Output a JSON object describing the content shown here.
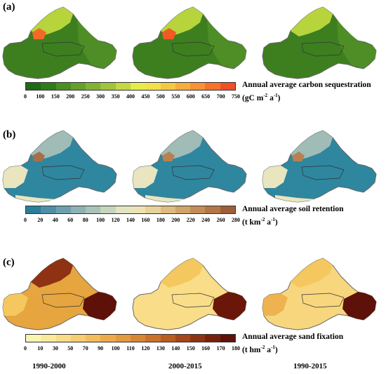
{
  "panels": [
    {
      "label": "(a)",
      "title": "Annual average carbon sequestration",
      "unit_prefix": "(gC m",
      "unit_exp1": "-2",
      "unit_mid": " a",
      "unit_exp2": "-1",
      "unit_suffix": ")",
      "ticks": [
        "0",
        "100",
        "150",
        "200",
        "250",
        "300",
        "350",
        "400",
        "450",
        "500",
        "550",
        "600",
        "650",
        "700",
        "750"
      ],
      "colors": [
        "#1e6b14",
        "#2f7d19",
        "#4a8f22",
        "#65a02b",
        "#82b233",
        "#a2c43a",
        "#c5d843",
        "#e6ec4a",
        "#f3e04a",
        "#f6c842",
        "#f7ad3a",
        "#f89232",
        "#f7722a",
        "#f24f22"
      ],
      "maps": [
        {
          "base": "#3d7f1f",
          "mid": "#4f8e26",
          "accent": "#b8d43d",
          "hot": "#f36a28",
          "hot2": "#d5e84a"
        },
        {
          "base": "#3d7f1f",
          "mid": "#4f8e26",
          "accent": "#b8d43d",
          "hot": "#f25a24",
          "hot2": "#d5e84a"
        },
        {
          "base": "#3d7f1f",
          "mid": "#4f8e26",
          "accent": "#b8d43d",
          "hot": "#bad33e",
          "hot2": "#d5e84a"
        }
      ]
    },
    {
      "label": "(b)",
      "title": "Annual average soil retention",
      "unit_prefix": "(t km",
      "unit_exp1": "-2",
      "unit_mid": " a",
      "unit_exp2": "-1",
      "unit_suffix": ")",
      "ticks": [
        "0",
        "20",
        "40",
        "60",
        "80",
        "100",
        "120",
        "140",
        "160",
        "180",
        "200",
        "220",
        "240",
        "260",
        "280"
      ],
      "colors": [
        "#2a7e9a",
        "#4f8fa6",
        "#6f9fae",
        "#8eb1b4",
        "#aac3b8",
        "#c6d6bd",
        "#e3e5c2",
        "#ede2b6",
        "#e8d29c",
        "#dcbc80",
        "#cfa56a",
        "#c28d57",
        "#b27749",
        "#9c5f3a"
      ],
      "maps": [
        {
          "base": "#2f869f",
          "mid": "#6fa3ae",
          "accent": "#e8e5bf",
          "hot": "#a86e47",
          "hot2": "#9fbcb6"
        },
        {
          "base": "#2f869f",
          "mid": "#6fa3ae",
          "accent": "#e8e5bf",
          "hot": "#b98050",
          "hot2": "#9fbcb6"
        },
        {
          "base": "#2f869f",
          "mid": "#6fa3ae",
          "accent": "#e8e5bf",
          "hot": "#b98050",
          "hot2": "#9fbcb6"
        }
      ]
    },
    {
      "label": "(c)",
      "title": "Annual average sand fixation",
      "unit_prefix": "(t hm",
      "unit_exp1": "-2",
      "unit_mid": " a",
      "unit_exp2": "-1",
      "unit_suffix": ")",
      "ticks": [
        "0",
        "10",
        "30",
        "50",
        "70",
        "90",
        "100",
        "110",
        "120",
        "130",
        "140",
        "150",
        "160",
        "170",
        "180"
      ],
      "colors": [
        "#fbf5b4",
        "#fbe99a",
        "#f9dc86",
        "#f6cd6f",
        "#f2bd5a",
        "#edab48",
        "#e49a3d",
        "#d98633",
        "#cc712a",
        "#bb5c21",
        "#a6461a",
        "#8f3214",
        "#78200e",
        "#5e1108"
      ],
      "maps": [
        {
          "base": "#e6a53e",
          "mid": "#d98633",
          "accent": "#f4c85e",
          "hot": "#5e1108",
          "hot2": "#8f3214"
        },
        {
          "base": "#f9dd88",
          "mid": "#f4d17a",
          "accent": "#f2bd5a",
          "hot": "#6a1609",
          "hot2": "#f4c85e"
        },
        {
          "base": "#f7d67e",
          "mid": "#f1c465",
          "accent": "#eeb350",
          "hot": "#5e1108",
          "hot2": "#f4c85e"
        }
      ]
    }
  ],
  "periods": [
    "1990-2000",
    "2000-2015",
    "1990-2015"
  ]
}
